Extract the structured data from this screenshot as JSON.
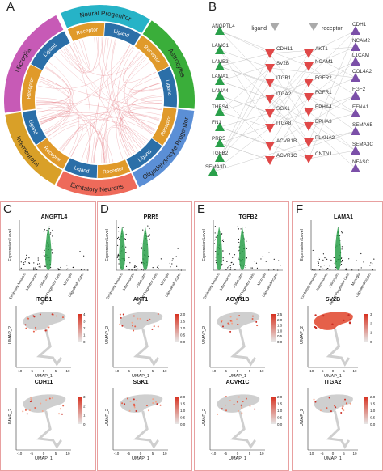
{
  "panels": {
    "A": "A",
    "B": "B",
    "C": "C",
    "D": "D",
    "E": "E",
    "F": "F"
  },
  "circos": {
    "segments": [
      {
        "name": "Neural Progenitor",
        "color": "#26b3c7"
      },
      {
        "name": "Astrocytes",
        "color": "#3aae3a"
      },
      {
        "name": "Oligodendrocyte Progenitor",
        "color": "#5b8fd6"
      },
      {
        "name": "Excitatory Neurons",
        "color": "#ee6a5a"
      },
      {
        "name": "Interneurons",
        "color": "#d9a028"
      },
      {
        "name": "Microglia",
        "color": "#c75ab6"
      }
    ],
    "inner": {
      "receptor": "Receptor",
      "ligand": "Ligand"
    }
  },
  "network": {
    "header_ligand": "ligand",
    "header_receptor": "receptor",
    "ligands": [
      "ANGPTL4",
      "LAMC1",
      "LAMB2",
      "LAMA1",
      "LAMA4",
      "THBS4",
      "FN1",
      "PRR5",
      "TGFB2",
      "SEMA3D"
    ],
    "receptors_a": [
      "CDH11",
      "SV2B",
      "ITGB1",
      "ITGA2",
      "SGK1",
      "ITGA8",
      "ACVR1B",
      "ACVR1C"
    ],
    "receptors_b": [
      "AKT1",
      "NCAM1",
      "FGFR2",
      "FGFR1",
      "EPHA4",
      "EPHA3",
      "PLXNA2",
      "CNTN1"
    ],
    "others": [
      "CDH1",
      "NCAM2",
      "L1CAM",
      "COL4A2",
      "FGF2",
      "EFNA1",
      "SEMA6B",
      "SEMA3C",
      "NFASC"
    ],
    "colors": {
      "ligand": "#2aa04a",
      "receptor": "#e04848",
      "other": "#7b4fa8",
      "header": "#aaaaaa"
    }
  },
  "violin_panels": [
    {
      "gene": "ANGPTL4",
      "ylabel": "Expression Level"
    },
    {
      "gene": "PRR5",
      "ylabel": "Expression Level"
    },
    {
      "gene": "TGFB2",
      "ylabel": "Expression Level"
    },
    {
      "gene": "LAMA1",
      "ylabel": "Expression Level"
    }
  ],
  "cell_types": [
    "Excitatory Neurons",
    "Interneurons",
    "Astrocytes",
    "Neural Progenitor Cells",
    "Microglia",
    "Oligodendrocytes"
  ],
  "umap_panels": [
    {
      "gene": "ITGB1",
      "scale": [
        "4",
        "3",
        "2",
        "1",
        "0"
      ]
    },
    {
      "gene": "AKT1",
      "scale": [
        "2.0",
        "1.5",
        "1.0",
        "0.5",
        "0.0"
      ]
    },
    {
      "gene": "ACVR1B",
      "scale": [
        "2.5",
        "2.0",
        "1.5",
        "1.0",
        "0.5",
        "0.0"
      ]
    },
    {
      "gene": "SV2B",
      "scale": [
        "3",
        "2",
        "1",
        "0"
      ]
    },
    {
      "gene": "CDH11",
      "scale": [
        "3",
        "2",
        "1",
        "0"
      ]
    },
    {
      "gene": "SGK1",
      "scale": [
        "2.0",
        "1.5",
        "1.0",
        "0.5",
        "0.0"
      ]
    },
    {
      "gene": "ACVR1C",
      "scale": [
        "2.0",
        "1.5",
        "1.0",
        "0.5",
        "0.0"
      ]
    },
    {
      "gene": "ITGA2",
      "scale": [
        "2.0",
        "1.5",
        "1.0",
        "0.5",
        "0.0"
      ]
    }
  ],
  "umap_axes": {
    "x": "UMAP_1",
    "y": "UMAP_2",
    "ticks": [
      "-10",
      "-5",
      "0",
      "5",
      "10"
    ]
  }
}
